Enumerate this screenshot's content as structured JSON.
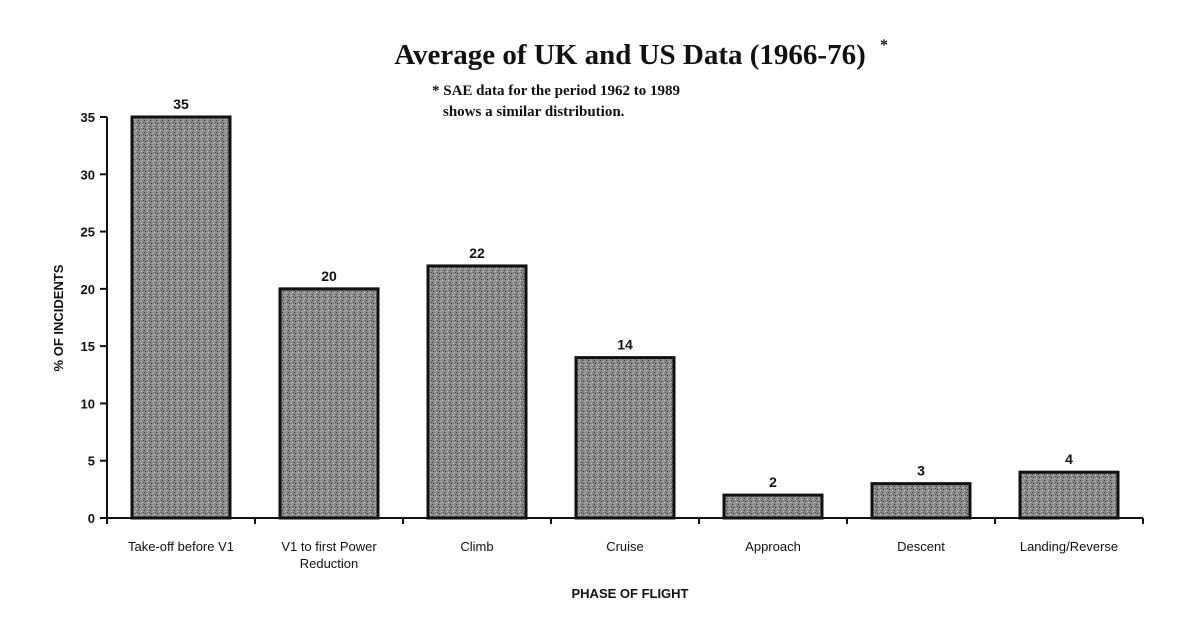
{
  "chart_data": {
    "type": "bar",
    "title": "Average of UK and US Data (1966-76)",
    "title_marker": "*",
    "annotation": [
      "* SAE data for the period 1962 to 1989",
      "shows a similar distribution."
    ],
    "xlabel": "PHASE OF FLIGHT",
    "ylabel": "% OF INCIDENTS",
    "categories": [
      "Take-off before V1",
      "V1 to first Power Reduction",
      "Climb",
      "Cruise",
      "Approach",
      "Descent",
      "Landing/Reverse"
    ],
    "values": [
      35,
      20,
      22,
      14,
      2,
      3,
      4
    ],
    "ylim": [
      0,
      35
    ],
    "yticks": [
      0,
      5,
      10,
      15,
      20,
      25,
      30,
      35
    ],
    "grid": false,
    "legend": "none",
    "bar_color": "#7a7a7a"
  }
}
